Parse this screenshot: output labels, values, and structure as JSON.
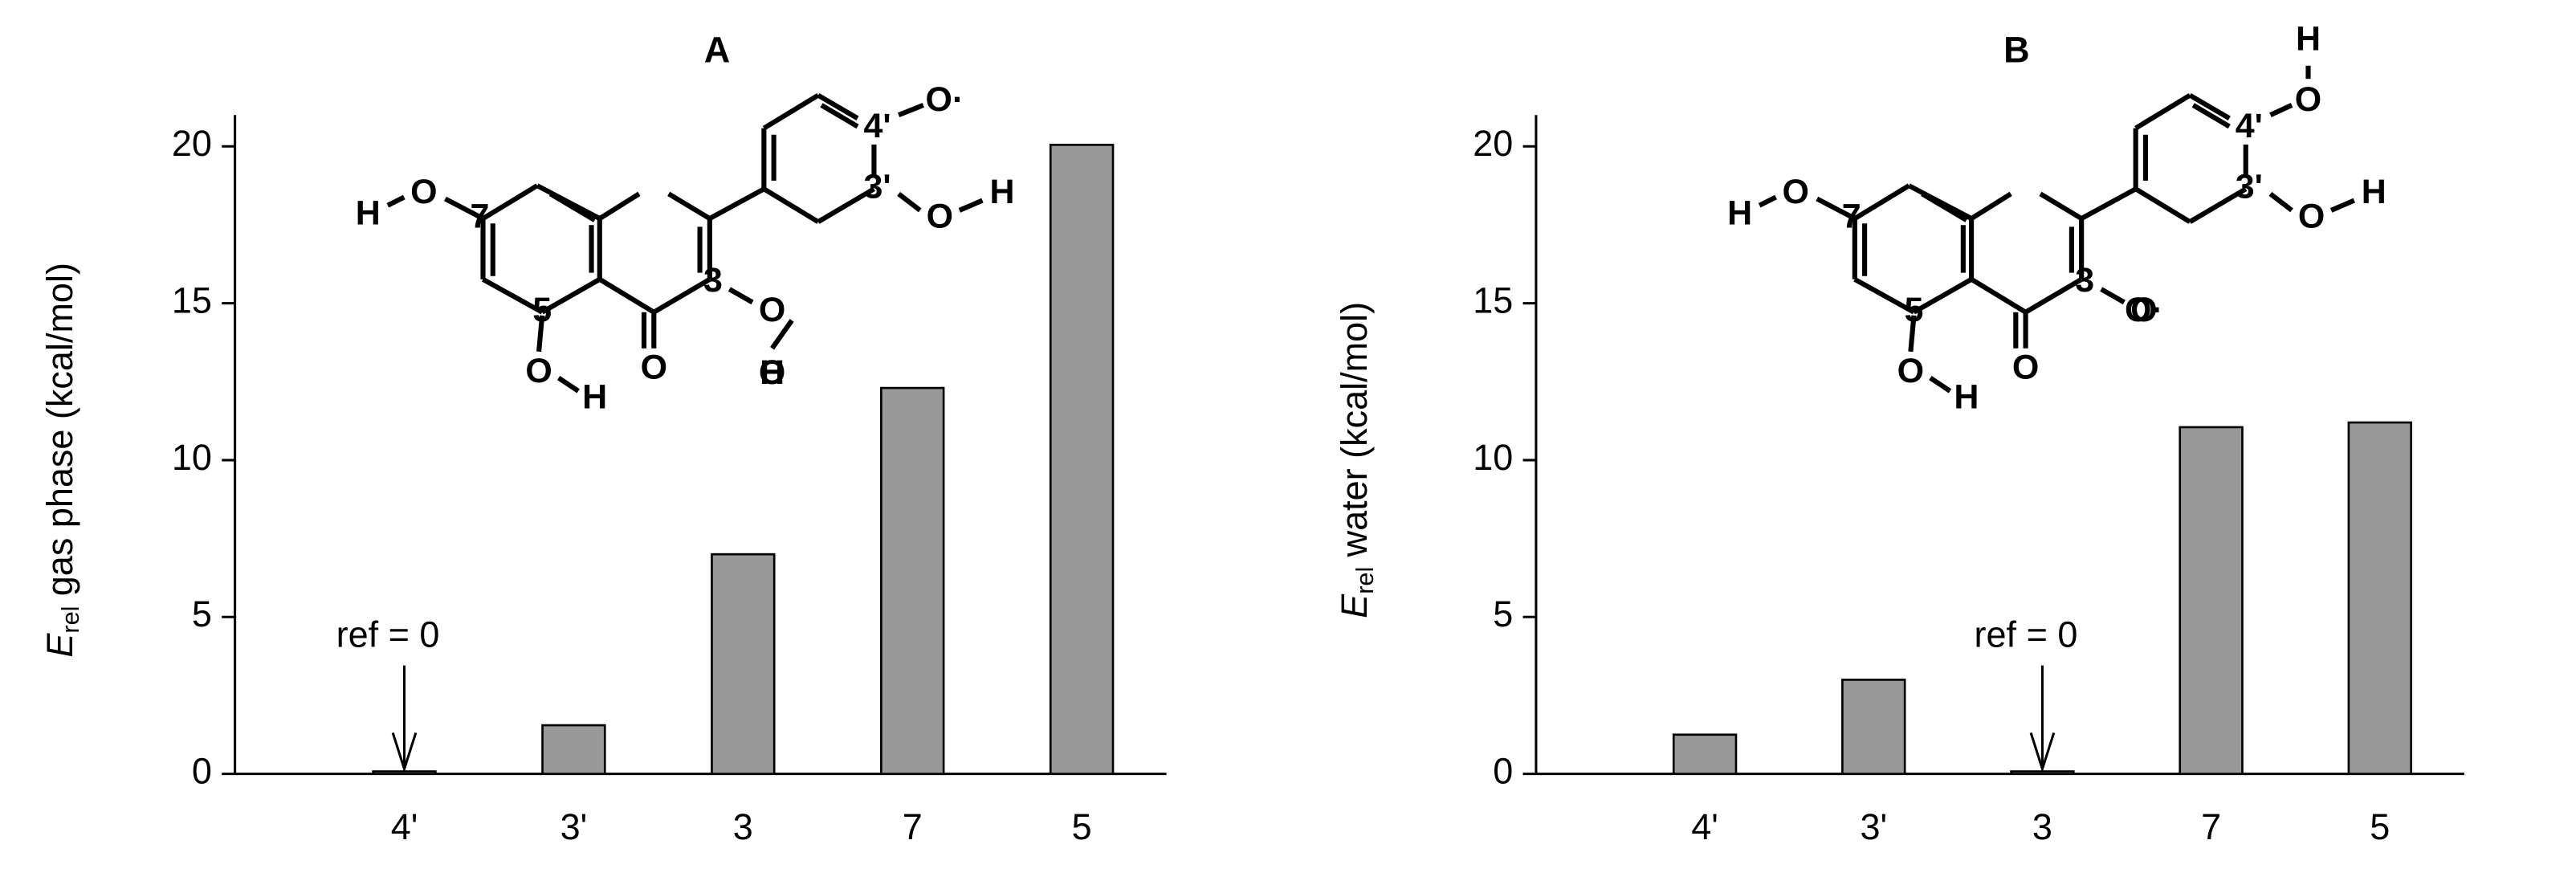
{
  "chart_data": [
    {
      "type": "bar",
      "title": "A",
      "ylabel": {
        "symbol": "E",
        "subscript": "rel",
        "text": "gas phase (kcal/mol)"
      },
      "categories": [
        "4'",
        "3'",
        "3",
        "7",
        "5"
      ],
      "values": [
        0,
        1.55,
        7.0,
        12.3,
        20.05
      ],
      "color": "#999999",
      "ylim": [
        0,
        21
      ],
      "yticks": [
        0,
        5,
        10,
        15,
        20
      ],
      "annotation": "ref = 0",
      "structure_labels": [
        "O",
        "3",
        "O",
        "O",
        "H",
        "5",
        "O",
        "H",
        "7",
        "O",
        "H",
        "4'",
        "O·",
        "3'",
        "O",
        "H"
      ]
    },
    {
      "type": "bar",
      "title": "B",
      "ylabel": {
        "symbol": "E",
        "subscript": "rel",
        "text": "water (kcal/mol)"
      },
      "categories": [
        "4'",
        "3'",
        "3",
        "7",
        "5"
      ],
      "values": [
        1.25,
        3.0,
        0,
        11.05,
        11.2
      ],
      "color": "#999999",
      "ylim": [
        0,
        21
      ],
      "yticks": [
        0,
        5,
        10,
        15,
        20
      ],
      "annotation": "ref = 0",
      "structure_labels": [
        "O",
        "3",
        "O",
        "O·",
        "5",
        "O",
        "H",
        "7",
        "O",
        "H",
        "4'",
        "O",
        "H",
        "3'",
        "O",
        "H"
      ]
    }
  ]
}
